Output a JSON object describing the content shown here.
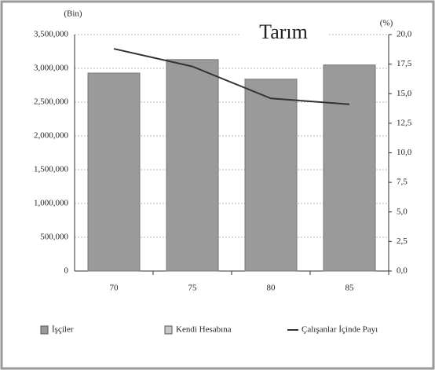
{
  "chart_data": {
    "type": "bar",
    "title": "Tarım",
    "ylabel": "(Bin)",
    "y2label": "(%)",
    "categories": [
      "70",
      "75",
      "80",
      "85"
    ],
    "series": [
      {
        "name": "İşçiler",
        "color": "#9a9a9a",
        "values": [
          2930000,
          3130000,
          2840000,
          3050000
        ]
      },
      {
        "name": "Kendi Hesabına",
        "color": "#c8c8c8",
        "values": [
          null,
          null,
          null,
          null
        ]
      },
      {
        "name": "Çalışanlar İçinde Payı",
        "color": "#333333",
        "type": "line",
        "axis": "y2",
        "values": [
          18.8,
          17.3,
          14.6,
          14.1
        ]
      }
    ],
    "ylim": [
      0,
      3500000
    ],
    "yticks": [
      0,
      {
        "value": 500000,
        "label": "500,000"
      },
      {
        "value": 1000000,
        "label": "1,000,000"
      },
      {
        "value": 1500000,
        "label": "1,500,000"
      },
      {
        "value": 2000000,
        "label": "2,000,000"
      },
      {
        "value": 2500000,
        "label": "2,500,000"
      },
      {
        "value": 3000000,
        "label": "3,000,000"
      },
      {
        "value": 3500000,
        "label": "3,500,000"
      }
    ],
    "y2lim": [
      0,
      20
    ],
    "y2ticks": [
      {
        "value": 0,
        "label": "0,0"
      },
      {
        "value": 2.5,
        "label": "2,5"
      },
      {
        "value": 5,
        "label": "5,0"
      },
      {
        "value": 7.5,
        "label": "7,5"
      },
      {
        "value": 10,
        "label": "10,0"
      },
      {
        "value": 12.5,
        "label": "12,5"
      },
      {
        "value": 15,
        "label": "15,0"
      },
      {
        "value": 17.5,
        "label": "17,5"
      },
      {
        "value": 20,
        "label": "20,0"
      }
    ],
    "grid": true
  }
}
